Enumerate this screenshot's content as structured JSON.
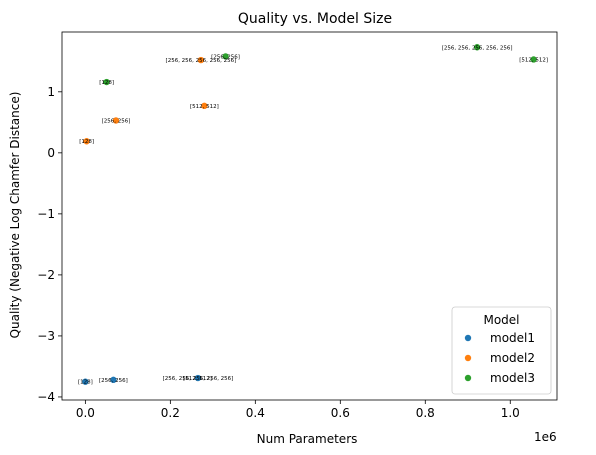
{
  "chart_data": {
    "type": "scatter",
    "title": "Quality vs. Model Size",
    "xlabel": "Num Parameters",
    "ylabel": "Quality (Negative Log Chamfer Distance)",
    "x_offset_label": "1e6",
    "xlim": [
      -0.055,
      1.11
    ],
    "ylim": [
      -4.05,
      1.98
    ],
    "x_ticks": [
      0.0,
      0.2,
      0.4,
      0.6,
      0.8,
      1.0
    ],
    "x_tick_labels": [
      "0.0",
      "0.2",
      "0.4",
      "0.6",
      "0.8",
      "1.0"
    ],
    "y_ticks": [
      -4,
      -3,
      -2,
      -1,
      0,
      1
    ],
    "y_tick_labels": [
      "−4",
      "−3",
      "−2",
      "−1",
      "0",
      "1"
    ],
    "legend": {
      "title": "Model",
      "position": "lower-right"
    },
    "series": [
      {
        "name": "model1",
        "color": "#1f77b4",
        "points": [
          {
            "x": 0.0,
            "y": -3.75,
            "label": "[128]"
          },
          {
            "x": 0.066,
            "y": -3.72,
            "label": "[256, 256]"
          },
          {
            "x": 0.264,
            "y": -3.69,
            "label": "[512, 512]"
          },
          {
            "x": 0.265,
            "y": -3.69,
            "label": "[256, 256, 256, 256, 256]"
          }
        ]
      },
      {
        "name": "model2",
        "color": "#ff7f0e",
        "points": [
          {
            "x": 0.003,
            "y": 0.19,
            "label": "[128]"
          },
          {
            "x": 0.072,
            "y": 0.53,
            "label": "[256, 256]"
          },
          {
            "x": 0.28,
            "y": 0.77,
            "label": "[512, 512]"
          },
          {
            "x": 0.272,
            "y": 1.52,
            "label": "[256, 256, 256, 256, 256]"
          }
        ]
      },
      {
        "name": "model3",
        "color": "#2ca02c",
        "points": [
          {
            "x": 0.05,
            "y": 1.16,
            "label": "[128]"
          },
          {
            "x": 0.33,
            "y": 1.58,
            "label": "[256, 256]"
          },
          {
            "x": 1.055,
            "y": 1.53,
            "label": "[512, 512]"
          },
          {
            "x": 0.922,
            "y": 1.73,
            "label": "[256, 256, 256, 256, 256]"
          }
        ]
      }
    ]
  }
}
